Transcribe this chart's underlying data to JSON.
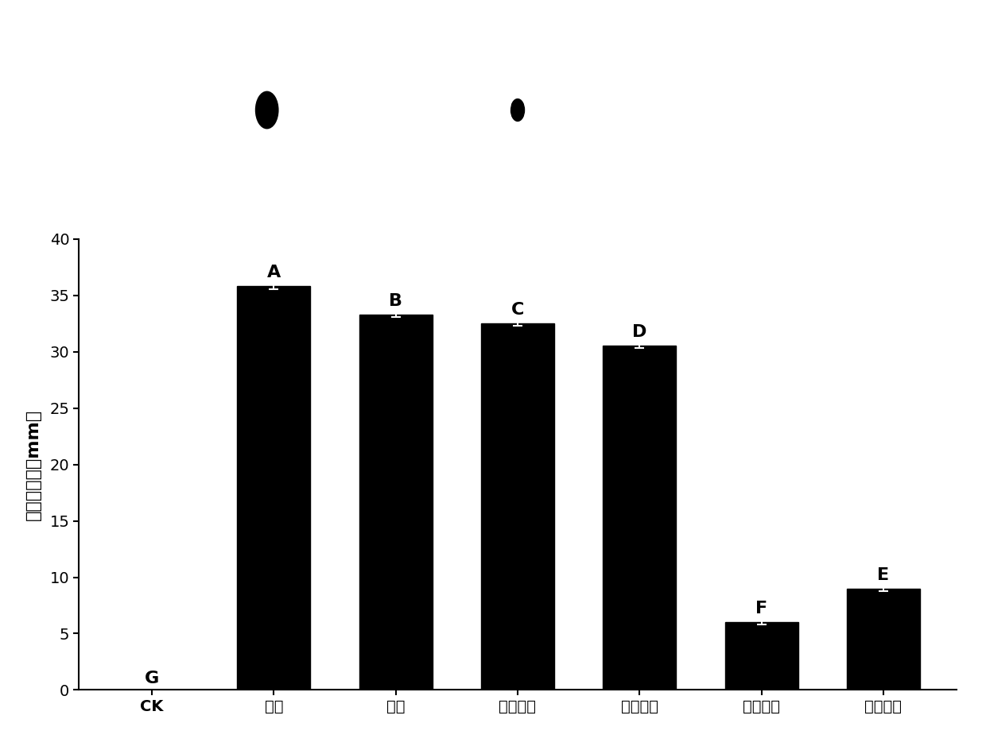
{
  "categories": [
    "CK",
    "粉剂",
    "母液",
    "粉剂上清",
    "母液上清",
    "粉剂菌体",
    "母液菌体"
  ],
  "values": [
    0.0,
    35.8,
    33.3,
    32.5,
    30.5,
    6.0,
    9.0
  ],
  "errors": [
    0.0,
    0.3,
    0.2,
    0.2,
    0.2,
    0.2,
    0.2
  ],
  "labels": [
    "G",
    "A",
    "B",
    "C",
    "D",
    "F",
    "E"
  ],
  "bar_color": "#000000",
  "ylabel": "抑菌圈直径（mm）",
  "ylim": [
    0,
    40
  ],
  "yticks": [
    0,
    5,
    10,
    15,
    20,
    25,
    30,
    35,
    40
  ],
  "label_fontsize": 16,
  "tick_fontsize": 14,
  "ylabel_fontsize": 16,
  "bar_width": 0.6,
  "figure_bg": "#ffffff",
  "top_panel_bg": "#000000"
}
